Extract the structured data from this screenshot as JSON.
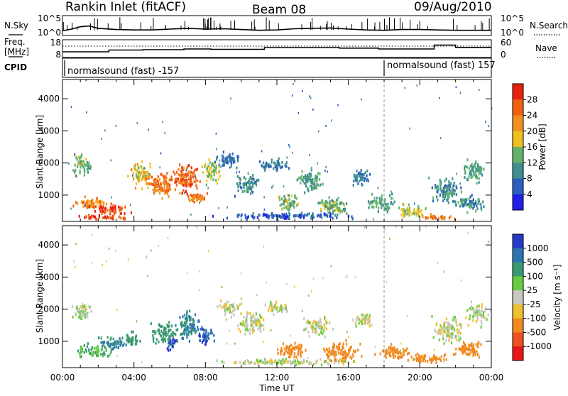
{
  "header": {
    "station": "Rankin Inlet (fitACF)",
    "beam": "Beam 08",
    "date": "09/Aug/2010"
  },
  "noise_panel": {
    "left_label": "N.Sky",
    "right_label": "N.Search",
    "left_ticks": [
      "10^5",
      "10^0"
    ],
    "right_ticks": [
      "10^5",
      "10^0"
    ]
  },
  "freq_panel": {
    "left_label_line1": "Freq.",
    "left_label_line2": "[MHz]",
    "right_label": "Nave",
    "left_ticks": [
      "18",
      "8"
    ],
    "right_ticks": [
      "60",
      "0"
    ]
  },
  "cpid_panel": {
    "label": "CPID",
    "segments": [
      {
        "text": "normalsound (fast) -157",
        "start_hour": 0
      },
      {
        "text": "normalsound (fast) 157",
        "start_hour": 18
      }
    ]
  },
  "time_axis": {
    "title": "Time UT",
    "ticks": [
      "00:00",
      "04:00",
      "08:00",
      "12:00",
      "16:00",
      "20:00",
      "00:00"
    ],
    "range_hours": [
      0,
      24
    ]
  },
  "range_axis": {
    "title": "Slant Range [km]",
    "ticks": [
      "1000",
      "2000",
      "3000",
      "4000"
    ]
  },
  "power_scale": {
    "title": "Power [dB]",
    "ticks": [
      "4",
      "8",
      "12",
      "16",
      "20",
      "24",
      "28"
    ],
    "colors": [
      "#1f1fe8",
      "#2c5ec0",
      "#3f8f8f",
      "#63b36c",
      "#f0c020",
      "#f09020",
      "#f06010",
      "#e82010"
    ]
  },
  "velocity_scale": {
    "title": "Velocity [m s⁻¹]",
    "ticks": [
      "1000",
      "500",
      "100",
      "25",
      "-25",
      "-100",
      "-500",
      "-1000"
    ],
    "colors": [
      "#2838c8",
      "#2c74b0",
      "#3a9a70",
      "#66cc40",
      "#c8c8c0",
      "#f0c030",
      "#f08a20",
      "#f05020",
      "#e81818"
    ]
  },
  "chart_data": {
    "type": "heatmap",
    "x_unit": "hours UT",
    "y_unit": "slant range km",
    "xlim": [
      0,
      24
    ],
    "ylim": [
      180,
      4600
    ],
    "noise_sky_log10": [
      [
        0,
        1.2
      ],
      [
        0.5,
        1.6
      ],
      [
        1,
        2.2
      ],
      [
        1.5,
        2.4
      ],
      [
        2,
        1.8
      ],
      [
        3,
        1.5
      ],
      [
        4,
        1.4
      ],
      [
        5,
        1.4
      ],
      [
        6,
        1.6
      ],
      [
        7,
        1.8
      ],
      [
        8,
        1.6
      ],
      [
        9,
        1.7
      ],
      [
        10,
        1.5
      ],
      [
        11,
        1.3
      ],
      [
        12,
        1.4
      ],
      [
        13,
        1.7
      ],
      [
        14,
        1.8
      ],
      [
        15,
        1.9
      ],
      [
        16,
        1.6
      ],
      [
        17,
        1.4
      ],
      [
        18,
        1.3
      ],
      [
        19,
        1.5
      ],
      [
        20,
        1.5
      ],
      [
        21,
        1.4
      ],
      [
        22,
        1.3
      ],
      [
        23,
        1.3
      ],
      [
        24,
        1.3
      ]
    ],
    "frequency_mhz": [
      [
        0,
        11.2
      ],
      [
        2.6,
        11.2
      ],
      [
        2.6,
        12.2
      ],
      [
        4.5,
        12.2
      ],
      [
        4.5,
        12.4
      ],
      [
        6.8,
        12.4
      ],
      [
        6.8,
        12.8
      ],
      [
        8.3,
        12.8
      ],
      [
        8.3,
        12.6
      ],
      [
        11.3,
        12.6
      ],
      [
        11.3,
        13.6
      ],
      [
        15.5,
        13.6
      ],
      [
        15.5,
        13.3
      ],
      [
        17.7,
        13.3
      ],
      [
        17.7,
        12.8
      ],
      [
        20.8,
        12.8
      ],
      [
        20.8,
        15.0
      ],
      [
        22.0,
        15.0
      ],
      [
        22.0,
        13.7
      ],
      [
        24,
        13.7
      ]
    ],
    "power_blobs": [
      {
        "t": 1.1,
        "r": 1900,
        "w": 1.4,
        "h": 900,
        "db": 14
      },
      {
        "t": 1.6,
        "r": 700,
        "w": 2.6,
        "h": 520,
        "db": 22
      },
      {
        "t": 2.6,
        "r": 500,
        "w": 3.0,
        "h": 420,
        "db": 28
      },
      {
        "t": 2.3,
        "r": 260,
        "w": 4.4,
        "h": 200,
        "db": 28
      },
      {
        "t": 4.4,
        "r": 1600,
        "w": 1.6,
        "h": 1100,
        "db": 18
      },
      {
        "t": 5.6,
        "r": 1300,
        "w": 2.2,
        "h": 1000,
        "db": 24
      },
      {
        "t": 6.9,
        "r": 1500,
        "w": 1.8,
        "h": 1300,
        "db": 26
      },
      {
        "t": 7.4,
        "r": 850,
        "w": 1.6,
        "h": 500,
        "db": 24
      },
      {
        "t": 8.3,
        "r": 1700,
        "w": 1.4,
        "h": 900,
        "db": 16
      },
      {
        "t": 9.2,
        "r": 2050,
        "w": 1.8,
        "h": 650,
        "db": 8
      },
      {
        "t": 10.3,
        "r": 1300,
        "w": 1.8,
        "h": 900,
        "db": 10
      },
      {
        "t": 11.8,
        "r": 1900,
        "w": 2.4,
        "h": 500,
        "db": 8
      },
      {
        "t": 12.6,
        "r": 700,
        "w": 1.8,
        "h": 700,
        "db": 14
      },
      {
        "t": 13.8,
        "r": 1400,
        "w": 2.0,
        "h": 900,
        "db": 12
      },
      {
        "t": 15.1,
        "r": 600,
        "w": 2.6,
        "h": 700,
        "db": 14
      },
      {
        "t": 16.6,
        "r": 1500,
        "w": 1.6,
        "h": 600,
        "db": 8
      },
      {
        "t": 17.8,
        "r": 700,
        "w": 2.0,
        "h": 700,
        "db": 12
      },
      {
        "t": 19.5,
        "r": 450,
        "w": 2.4,
        "h": 500,
        "db": 16
      },
      {
        "t": 20.9,
        "r": 250,
        "w": 2.6,
        "h": 250,
        "db": 24
      },
      {
        "t": 21.4,
        "r": 1100,
        "w": 2.2,
        "h": 1000,
        "db": 10
      },
      {
        "t": 23.0,
        "r": 1700,
        "w": 1.8,
        "h": 900,
        "db": 12
      },
      {
        "t": 22.7,
        "r": 700,
        "w": 2.2,
        "h": 700,
        "db": 10
      },
      {
        "t": 12.5,
        "r": 300,
        "w": 10.0,
        "h": 260,
        "db": 6
      }
    ],
    "velocity_blobs": [
      {
        "t": 1.0,
        "r": 1900,
        "w": 1.4,
        "h": 800,
        "v": 25
      },
      {
        "t": 1.8,
        "r": 650,
        "w": 2.8,
        "h": 500,
        "v": 100
      },
      {
        "t": 2.8,
        "r": 900,
        "w": 2.2,
        "h": 500,
        "v": 500
      },
      {
        "t": 3.8,
        "r": 1000,
        "w": 1.4,
        "h": 600,
        "v": 200
      },
      {
        "t": 5.6,
        "r": 1200,
        "w": 1.8,
        "h": 900,
        "v": 300
      },
      {
        "t": 6.0,
        "r": 900,
        "w": 1.0,
        "h": 500,
        "v": 1000
      },
      {
        "t": 7.0,
        "r": 1400,
        "w": 1.8,
        "h": 1200,
        "v": 500
      },
      {
        "t": 8.0,
        "r": 1100,
        "w": 1.2,
        "h": 700,
        "v": 1000
      },
      {
        "t": 9.2,
        "r": 2000,
        "w": 1.8,
        "h": 600,
        "v": 0
      },
      {
        "t": 10.6,
        "r": 1500,
        "w": 2.2,
        "h": 900,
        "v": 0
      },
      {
        "t": 12.0,
        "r": 2000,
        "w": 2.2,
        "h": 500,
        "v": 0
      },
      {
        "t": 12.8,
        "r": 650,
        "w": 2.0,
        "h": 700,
        "v": -300
      },
      {
        "t": 14.2,
        "r": 1400,
        "w": 2.0,
        "h": 900,
        "v": 0
      },
      {
        "t": 15.5,
        "r": 600,
        "w": 2.8,
        "h": 800,
        "v": -400
      },
      {
        "t": 16.8,
        "r": 1600,
        "w": 1.6,
        "h": 600,
        "v": 0
      },
      {
        "t": 18.5,
        "r": 600,
        "w": 2.4,
        "h": 700,
        "v": -400
      },
      {
        "t": 20.5,
        "r": 400,
        "w": 2.8,
        "h": 450,
        "v": -300
      },
      {
        "t": 21.6,
        "r": 1300,
        "w": 2.2,
        "h": 1100,
        "v": 0
      },
      {
        "t": 23.2,
        "r": 1800,
        "w": 1.6,
        "h": 900,
        "v": 0
      },
      {
        "t": 22.6,
        "r": 700,
        "w": 2.2,
        "h": 700,
        "v": -200
      },
      {
        "t": 12.5,
        "r": 300,
        "w": 10.0,
        "h": 260,
        "v": 0
      }
    ]
  }
}
